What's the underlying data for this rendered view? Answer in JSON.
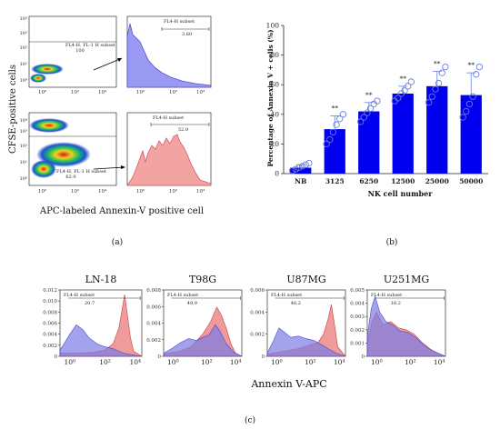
{
  "panel_labels": {
    "a": "(a)",
    "b": "(b)",
    "c": "(c)"
  },
  "panel_a": {
    "ylabel": "CFSE-positive cells",
    "xlabel": "APC-labeled Annexin-V positive cell",
    "tick_labels": [
      "10⁰",
      "10²",
      "10⁴"
    ],
    "top_dot": {
      "gate_label": "FL4-H, FL-1 H subset",
      "gate_value": "100"
    },
    "top_hist": {
      "gate_label": "FL4-H subset",
      "gate_value": "3.60"
    },
    "bottom_dot": {
      "gate_label": "FL4-H, FL-1 H subset",
      "gate_value": "62.0"
    },
    "bottom_hist": {
      "gate_label": "FL4-H subset",
      "gate_value": "52.0"
    },
    "colors": {
      "top_hist_fill": "#9a9af2",
      "top_hist_line": "#5252d8",
      "bottom_hist_fill": "#f4a3a3",
      "bottom_hist_line": "#d65c5c"
    }
  },
  "chart_data": [
    {
      "type": "bar",
      "categories": [
        "NB",
        "3125",
        "6250",
        "12500",
        "25000",
        "50000"
      ],
      "values": [
        4,
        30,
        42,
        54,
        59,
        53
      ],
      "errors": [
        2,
        9,
        6,
        5,
        10,
        15
      ],
      "points": [
        [
          2,
          3,
          4,
          5,
          6,
          7
        ],
        [
          20,
          23,
          28,
          33,
          37,
          40
        ],
        [
          35,
          38,
          41,
          44,
          47,
          49
        ],
        [
          49,
          51,
          54,
          56,
          59,
          62
        ],
        [
          48,
          52,
          57,
          61,
          68,
          72
        ],
        [
          38,
          42,
          47,
          52,
          67,
          72
        ]
      ],
      "significance": [
        "",
        "**",
        "**",
        "**",
        "**",
        "**"
      ],
      "title": "",
      "xlabel": "NK cell number",
      "ylabel": "Percentage of Annexin V + cells (%)",
      "ylim": [
        0,
        100
      ],
      "yticks": [
        0,
        20,
        40,
        60,
        80,
        100
      ],
      "bar_color": "#0000ee",
      "point_color": "#6a7fd8"
    },
    {
      "type": "area",
      "xlabel": "Annexin V-APC",
      "x_tick_labels": [
        "10⁰",
        "10²",
        "10⁴"
      ],
      "series_colors": {
        "first": "#7a7ae6",
        "second": "#e87070"
      },
      "panels": [
        {
          "title": "LN-18",
          "yticks": [
            "0",
            "0.002",
            "0.004",
            "0.006",
            "0.008",
            "0.010",
            "0.012"
          ],
          "gate_label": "FL4-H subset",
          "gate_value": "20.7"
        },
        {
          "title": "T98G",
          "yticks": [
            "0",
            "0.002",
            "0.004",
            "0.006",
            "0.008"
          ],
          "gate_label": "FL4-H subset",
          "gate_value": "49.9"
        },
        {
          "title": "U87MG",
          "yticks": [
            "0",
            "0.002",
            "0.004",
            "0.006"
          ],
          "gate_label": "FL4-H subset",
          "gate_value": "46.2"
        },
        {
          "title": "U251MG",
          "yticks": [
            "0",
            "0.001",
            "0.002",
            "0.003",
            "0.004",
            "0.005"
          ],
          "gate_label": "FL4-H subset",
          "gate_value": "16.2"
        }
      ]
    }
  ]
}
